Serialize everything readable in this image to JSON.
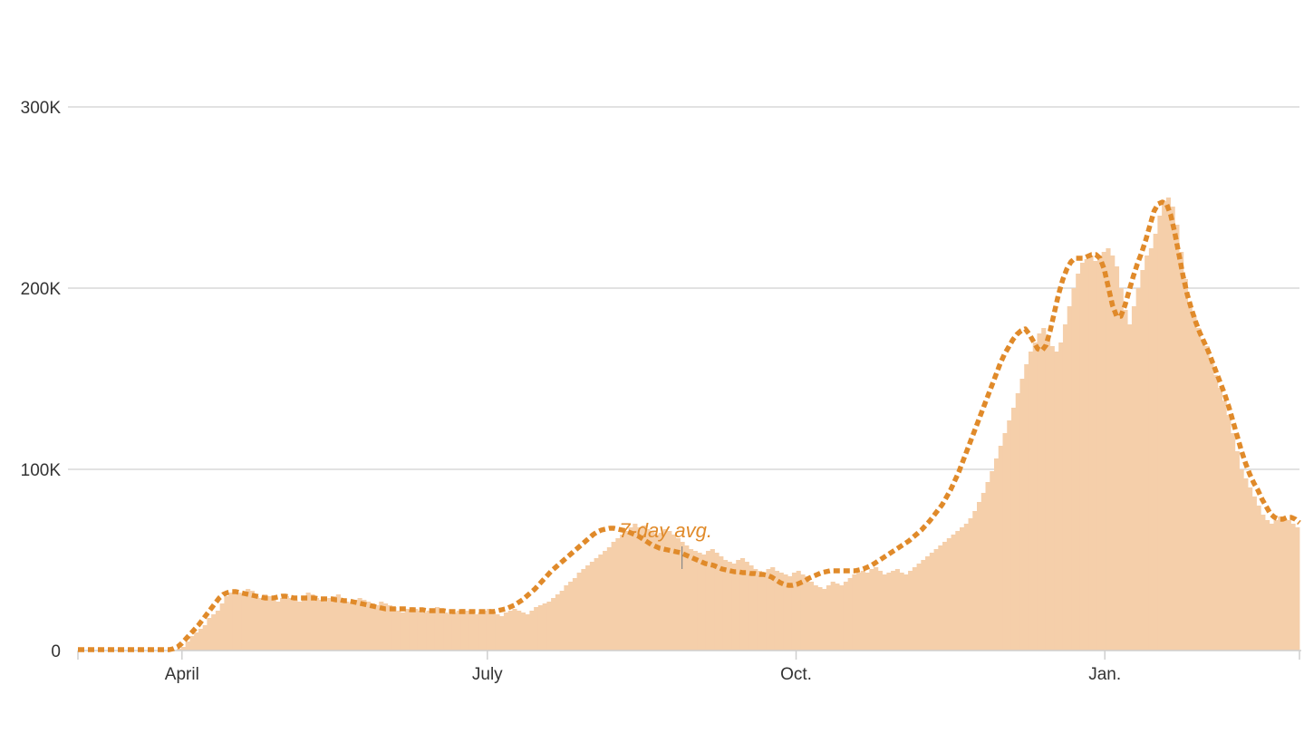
{
  "chart_data": {
    "type": "bar",
    "start_date": "2020-03-01",
    "end_date": "2021-02-28",
    "ylim": [
      0,
      300000
    ],
    "yticks": [
      {
        "value": 0,
        "label": "0"
      },
      {
        "value": 100000,
        "label": "100K"
      },
      {
        "value": 200000,
        "label": "200K"
      },
      {
        "value": 300000,
        "label": "300K"
      }
    ],
    "xticks": [
      {
        "date": "2020-04-01",
        "label": "April"
      },
      {
        "date": "2020-07-01",
        "label": "July"
      },
      {
        "date": "2020-10-01",
        "label": "Oct."
      },
      {
        "date": "2021-01-01",
        "label": "Jan."
      }
    ],
    "grid": true,
    "colors": {
      "bars": "#f5cfaa",
      "average": "#e08a2a"
    },
    "annotation": {
      "text": "7-day avg.",
      "date": "2020-08-28",
      "value": 42000
    },
    "series": [
      {
        "kind": "bars",
        "values": [
          0,
          0,
          0,
          0,
          0,
          0,
          0,
          0,
          0,
          0,
          0,
          0,
          0,
          0,
          0,
          0,
          0,
          0,
          0,
          0,
          0,
          0,
          0,
          1000,
          2000,
          5000,
          8000,
          10000,
          12000,
          14000,
          18000,
          20000,
          22000,
          26000,
          30000,
          32000,
          33000,
          32000,
          31000,
          34000,
          33000,
          30000,
          29000,
          31000,
          30000,
          28000,
          27000,
          29000,
          30000,
          29000,
          28000,
          27000,
          30000,
          32000,
          31000,
          29000,
          28000,
          27000,
          29000,
          30000,
          31000,
          28000,
          27000,
          26000,
          28000,
          29000,
          28000,
          27000,
          26000,
          25000,
          27000,
          26000,
          25000,
          24000,
          22000,
          21000,
          23000,
          24000,
          23000,
          22000,
          21000,
          22000,
          23000,
          24000,
          22000,
          21000,
          20000,
          21000,
          22000,
          23000,
          22000,
          21000,
          20000,
          21000,
          22000,
          23000,
          21000,
          20000,
          19000,
          21000,
          22000,
          23000,
          22000,
          21000,
          20000,
          22000,
          24000,
          25000,
          26000,
          27000,
          29000,
          31000,
          33000,
          36000,
          38000,
          40000,
          43000,
          45000,
          47000,
          49000,
          51000,
          53000,
          55000,
          57000,
          60000,
          62000,
          64000,
          66000,
          68000,
          70000,
          68000,
          69000,
          67000,
          66000,
          64000,
          65000,
          67000,
          66000,
          64000,
          62000,
          60000,
          58000,
          56000,
          55000,
          54000,
          53000,
          55000,
          56000,
          54000,
          52000,
          50000,
          49000,
          48000,
          50000,
          51000,
          49000,
          47000,
          45000,
          44000,
          43000,
          45000,
          46000,
          44000,
          43000,
          42000,
          41000,
          43000,
          44000,
          42000,
          41000,
          38000,
          36000,
          35000,
          34000,
          36000,
          38000,
          37000,
          36000,
          38000,
          40000,
          42000,
          43000,
          44000,
          43000,
          45000,
          46000,
          44000,
          42000,
          43000,
          44000,
          45000,
          43000,
          42000,
          44000,
          46000,
          48000,
          50000,
          52000,
          54000,
          56000,
          58000,
          60000,
          62000,
          64000,
          66000,
          68000,
          70000,
          73000,
          77000,
          82000,
          87000,
          93000,
          99000,
          106000,
          113000,
          120000,
          127000,
          134000,
          142000,
          150000,
          158000,
          165000,
          170000,
          175000,
          178000,
          172000,
          168000,
          165000,
          170000,
          180000,
          190000,
          200000,
          208000,
          214000,
          216000,
          218000,
          215000,
          218000,
          220000,
          222000,
          218000,
          212000,
          200000,
          188000,
          180000,
          190000,
          200000,
          210000,
          218000,
          222000,
          230000,
          240000,
          248000,
          250000,
          245000,
          235000,
          220000,
          205000,
          192000,
          185000,
          178000,
          172000,
          168000,
          160000,
          152000,
          145000,
          138000,
          130000,
          120000,
          110000,
          100000,
          95000,
          90000,
          85000,
          80000,
          75000,
          72000,
          70000,
          72000,
          74000,
          73000,
          72000,
          70000,
          68000
        ]
      },
      {
        "kind": "line",
        "name": "7-day avg.",
        "values": [
          0,
          0,
          0,
          0,
          0,
          0,
          0,
          0,
          0,
          0,
          0,
          0,
          0,
          0,
          0,
          0,
          0,
          0,
          0,
          0,
          0,
          0,
          0,
          500,
          1500,
          3500,
          6000,
          8500,
          11000,
          13500,
          16500,
          19500,
          22500,
          25500,
          28500,
          30500,
          31500,
          32000,
          32000,
          31500,
          31000,
          30500,
          30000,
          29500,
          29000,
          28500,
          28500,
          28500,
          29000,
          29500,
          29500,
          29000,
          28500,
          28500,
          28500,
          28500,
          28500,
          28500,
          28000,
          28000,
          28000,
          28000,
          27500,
          27500,
          27000,
          27000,
          26500,
          26000,
          25500,
          25000,
          24500,
          24000,
          23500,
          23000,
          22500,
          22500,
          22500,
          22500,
          22500,
          22500,
          22000,
          22000,
          22000,
          22000,
          21500,
          21500,
          21500,
          21500,
          21500,
          21000,
          21000,
          21000,
          21000,
          21000,
          21000,
          21000,
          21000,
          21000,
          21000,
          21000,
          21000,
          21500,
          22000,
          22500,
          23500,
          24500,
          26000,
          27500,
          29500,
          31500,
          33500,
          36000,
          38500,
          41000,
          43500,
          45500,
          47500,
          49500,
          51500,
          53500,
          55500,
          57500,
          59500,
          61500,
          63500,
          65000,
          66000,
          66500,
          67000,
          67000,
          66500,
          66000,
          65500,
          64500,
          63500,
          62500,
          61000,
          59500,
          58000,
          57000,
          56000,
          55500,
          55000,
          54500,
          54000,
          53500,
          52500,
          51500,
          50500,
          49500,
          48500,
          47500,
          47000,
          46500,
          45500,
          44500,
          44000,
          43500,
          43000,
          43000,
          42500,
          42500,
          42000,
          42000,
          41500,
          41500,
          41000,
          40000,
          38500,
          37000,
          36000,
          35500,
          35500,
          36000,
          37000,
          38000,
          39500,
          40500,
          41500,
          42500,
          43000,
          43500,
          43500,
          43500,
          43500,
          43500,
          43500,
          43500,
          44000,
          44500,
          45500,
          46500,
          48000,
          49500,
          51000,
          52500,
          54000,
          55500,
          57000,
          58500,
          60000,
          62000,
          64000,
          66000,
          68500,
          71000,
          74000,
          77000,
          80000,
          84000,
          88000,
          93000,
          98000,
          104000,
          110000,
          116000,
          122000,
          128000,
          134000,
          140000,
          146000,
          152000,
          158000,
          163000,
          167000,
          171000,
          174000,
          176000,
          177000,
          174000,
          170000,
          166000,
          165000,
          168000,
          176000,
          186000,
          196000,
          204000,
          210000,
          214000,
          216000,
          216000,
          216000,
          217000,
          218000,
          218000,
          216000,
          210000,
          200000,
          190000,
          184000,
          184000,
          190000,
          198000,
          206000,
          213000,
          219000,
          226000,
          234000,
          242000,
          246000,
          247000,
          246000,
          240000,
          230000,
          218000,
          206000,
          196000,
          188000,
          181000,
          175000,
          170000,
          165000,
          159000,
          153000,
          147000,
          141000,
          134000,
          126000,
          118000,
          110000,
          103000,
          97000,
          92000,
          88000,
          83000,
          79000,
          75000,
          73000,
          72000,
          72000,
          73000,
          73000,
          72000,
          70000
        ]
      }
    ]
  }
}
